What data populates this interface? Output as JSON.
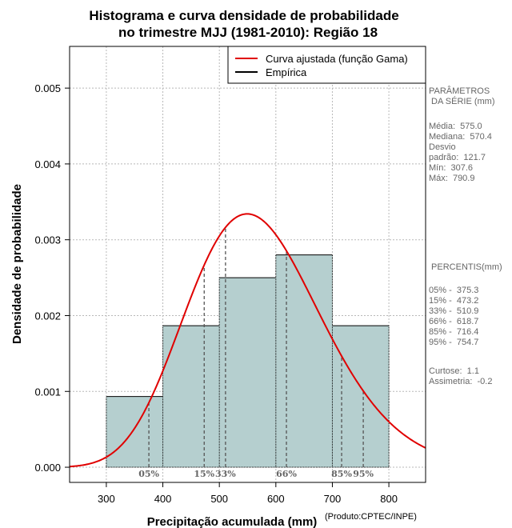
{
  "chart_data": {
    "type": "bar",
    "title_line1": "Histograma e curva densidade de probabilidade",
    "title_line2": "no trimestre MJJ (1981-2010): Região 18",
    "xlabel": "Precipitação acumulada (mm)",
    "ylabel": "Densidade de probabilidade",
    "xlim": [
      235,
      865
    ],
    "ylim": [
      -0.0002,
      0.00555
    ],
    "x_ticks": [
      300,
      400,
      500,
      600,
      700,
      800
    ],
    "y_ticks": [
      0.0,
      0.001,
      0.002,
      0.003,
      0.004,
      0.005
    ],
    "y_tick_labels": [
      "0.000",
      "0.001",
      "0.002",
      "0.003",
      "0.004",
      "0.005"
    ],
    "bins": [
      {
        "from": 300,
        "to": 400,
        "value": 0.000933
      },
      {
        "from": 400,
        "to": 500,
        "value": 0.001867
      },
      {
        "from": 500,
        "to": 600,
        "value": 0.0025
      },
      {
        "from": 600,
        "to": 700,
        "value": 0.0028
      },
      {
        "from": 700,
        "to": 800,
        "value": 0.001867
      }
    ],
    "bar_color": "#b5cfcf",
    "curve_color": "#e00000",
    "curve": {
      "name": "Curva ajustada (função Gama)",
      "mean": 575.0,
      "sd": 121.7
    },
    "percentile_lines": [
      {
        "label": "05%",
        "x": 375.3
      },
      {
        "label": "15%",
        "x": 473.2
      },
      {
        "label": "33%",
        "x": 510.9
      },
      {
        "label": "66%",
        "x": 618.7
      },
      {
        "label": "85%",
        "x": 716.4
      },
      {
        "label": "95%",
        "x": 754.7
      }
    ],
    "legend": [
      {
        "label": "Curva ajustada (função Gama)",
        "color": "#e00000"
      },
      {
        "label": "Empírica",
        "color": "#000000"
      }
    ],
    "legend_position": "top-right",
    "grid": true
  },
  "side_panel": {
    "params_title": "PARÂMETROS\n DA SÉRIE (mm)",
    "params": "Média:  575.0\nMediana:  570.4\nDesvio\npadrão:  121.7\nMín:  307.6\nMáx:  790.9",
    "percentis_title": " PERCENTIS(mm)",
    "percentis": "05% -  375.3\n15% -  473.2\n33% -  510.9\n66% -  618.7\n85% -  716.4\n95% -  754.7",
    "stats": "Curtose:  1.1\nAssimetria:  -0.2"
  },
  "credit": "(Produto:CPTEC/INPE)"
}
